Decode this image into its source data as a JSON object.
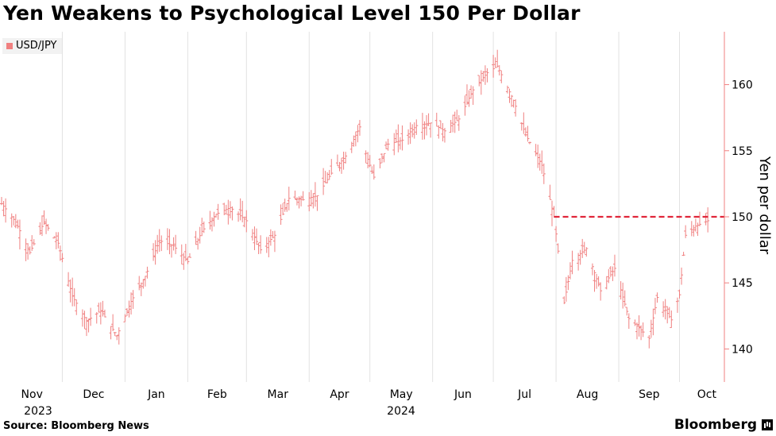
{
  "header": {
    "title": "Yen Weakens to Psychological Level 150 Per Dollar"
  },
  "footer": {
    "source": "Source: Bloomberg News",
    "brand": "Bloomberg"
  },
  "colors": {
    "series": "#f08080",
    "reference": "#e0263a",
    "axis": "#f08080",
    "grid": "#e2e2e2",
    "legend_bg": "#f2f2f2"
  },
  "chart_data": {
    "type": "line",
    "style": "ohlc bars",
    "series": [
      {
        "name": "USD/JPY",
        "x": [
          "2023-11-01",
          "2023-11-08",
          "2023-11-15",
          "2023-11-22",
          "2023-11-29",
          "2023-12-06",
          "2023-12-13",
          "2023-12-20",
          "2023-12-28",
          "2024-01-04",
          "2024-01-11",
          "2024-01-18",
          "2024-01-25",
          "2024-02-01",
          "2024-02-08",
          "2024-02-15",
          "2024-02-22",
          "2024-03-01",
          "2024-03-08",
          "2024-03-15",
          "2024-03-22",
          "2024-03-29",
          "2024-04-05",
          "2024-04-12",
          "2024-04-19",
          "2024-04-26",
          "2024-04-29",
          "2024-05-03",
          "2024-05-10",
          "2024-05-17",
          "2024-05-24",
          "2024-05-31",
          "2024-06-07",
          "2024-06-14",
          "2024-06-21",
          "2024-06-28",
          "2024-07-03",
          "2024-07-11",
          "2024-07-17",
          "2024-07-25",
          "2024-07-31",
          "2024-08-05",
          "2024-08-09",
          "2024-08-16",
          "2024-08-23",
          "2024-08-30",
          "2024-09-06",
          "2024-09-11",
          "2024-09-16",
          "2024-09-20",
          "2024-09-27",
          "2024-10-01",
          "2024-10-04",
          "2024-10-09",
          "2024-10-15"
        ],
        "values": [
          151.0,
          149.6,
          147.3,
          149.6,
          148.0,
          144.0,
          142.1,
          142.9,
          141.0,
          143.6,
          145.5,
          148.2,
          147.8,
          146.6,
          148.9,
          150.2,
          150.7,
          149.7,
          147.5,
          148.6,
          151.4,
          151.3,
          151.6,
          153.3,
          154.6,
          156.8,
          154.8,
          153.0,
          155.5,
          155.8,
          156.9,
          157.1,
          156.5,
          157.4,
          159.6,
          160.9,
          161.4,
          158.8,
          156.2,
          153.9,
          150.0,
          143.5,
          146.7,
          147.6,
          144.4,
          146.1,
          142.3,
          141.6,
          140.8,
          143.9,
          142.2,
          144.1,
          148.6,
          149.3,
          149.7
        ]
      }
    ],
    "reference_line": {
      "value": 150,
      "style": "dashed"
    },
    "x_ticks": [
      "Nov",
      "Dec",
      "Jan",
      "Feb",
      "Mar",
      "Apr",
      "May",
      "Jun",
      "Jul",
      "Aug",
      "Sep",
      "Oct"
    ],
    "x_year_labels": [
      "2023",
      "2024"
    ],
    "y_ticks": [
      140,
      145,
      150,
      155,
      160
    ],
    "ylabel": "Yen per dollar",
    "ylim": [
      137.5,
      164
    ],
    "xlim": [
      "2023-11-01",
      "2024-10-22"
    ],
    "grid": "vertical",
    "legend_position": "top-left",
    "y_axis_side": "right"
  }
}
